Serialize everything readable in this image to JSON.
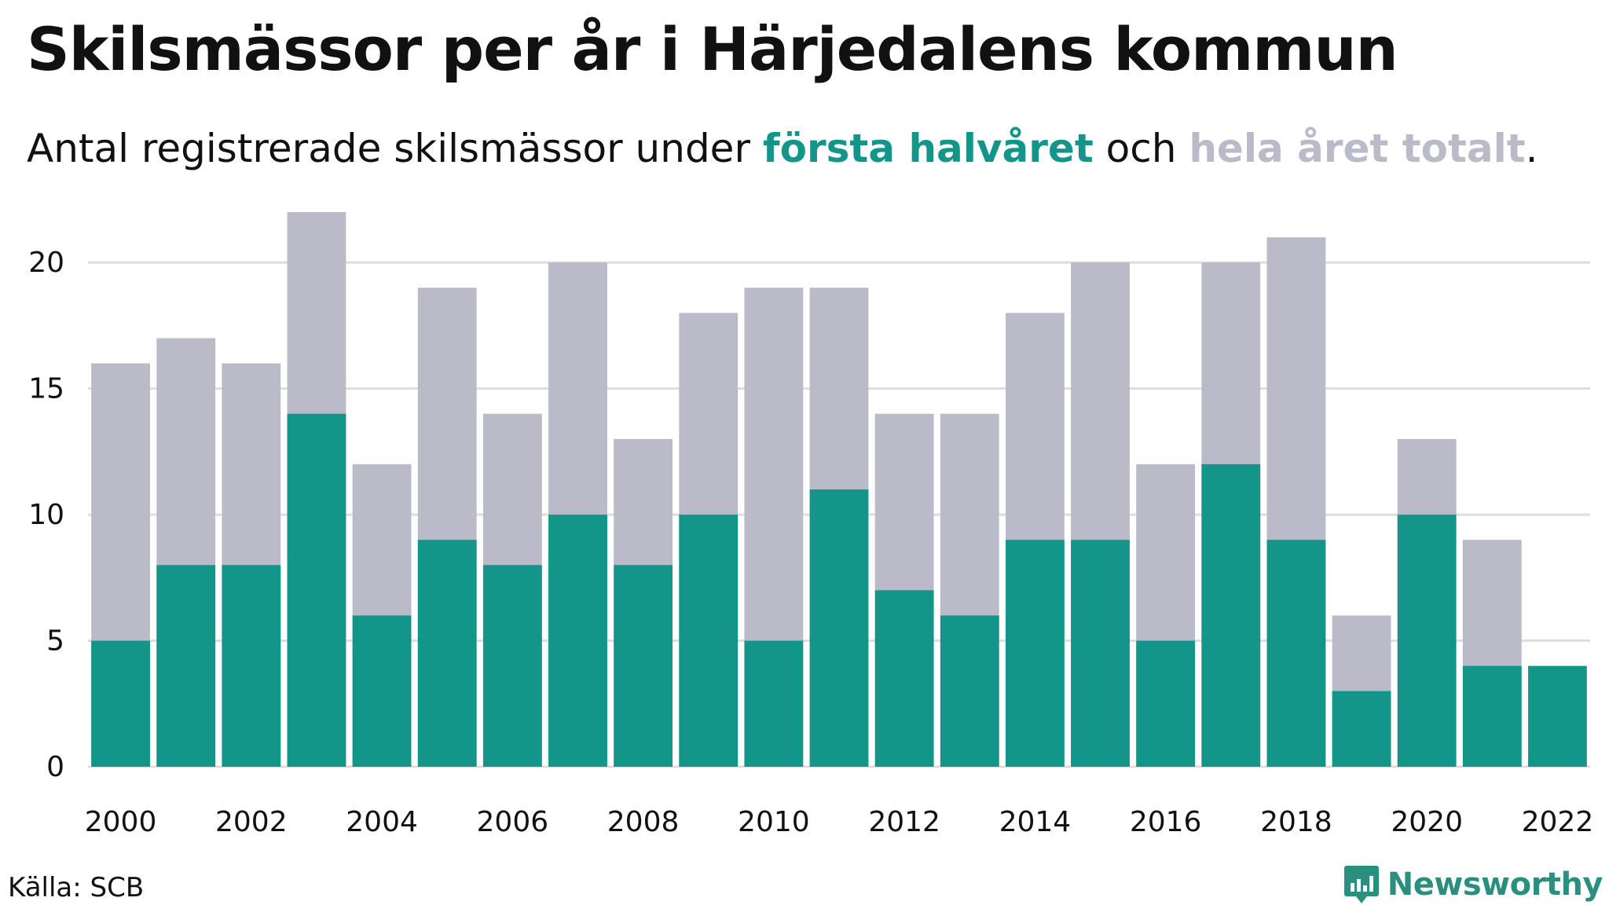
{
  "title": "Skilsmässor per år i Härjedalens kommun",
  "subtitle": {
    "before": "Antal registrerade skilsmässor under ",
    "first_half": "första halvåret",
    "middle": " och ",
    "total": "hela året totalt",
    "after": "."
  },
  "colors": {
    "first_half": "#14958a",
    "total": "#bbbac8",
    "grid": "#dddddd"
  },
  "chart_data": {
    "type": "bar",
    "stacking": "overlay",
    "categories": [
      "2000",
      "2001",
      "2002",
      "2003",
      "2004",
      "2005",
      "2006",
      "2007",
      "2008",
      "2009",
      "2010",
      "2011",
      "2012",
      "2013",
      "2014",
      "2015",
      "2016",
      "2017",
      "2018",
      "2019",
      "2020",
      "2021",
      "2022"
    ],
    "series": [
      {
        "name": "hela året totalt",
        "values": [
          16,
          17,
          16,
          22,
          12,
          19,
          14,
          20,
          13,
          18,
          19,
          19,
          14,
          14,
          18,
          20,
          12,
          20,
          21,
          6,
          13,
          9,
          null
        ]
      },
      {
        "name": "första halvåret",
        "values": [
          5,
          8,
          8,
          14,
          6,
          9,
          8,
          10,
          8,
          10,
          5,
          11,
          7,
          6,
          9,
          9,
          5,
          12,
          9,
          3,
          10,
          4,
          4
        ]
      }
    ],
    "y_ticks": [
      0,
      5,
      10,
      15,
      20
    ],
    "x_tick_labels": [
      "2000",
      "2002",
      "2004",
      "2006",
      "2008",
      "2010",
      "2012",
      "2014",
      "2016",
      "2018",
      "2020",
      "2022"
    ],
    "ylim": [
      0,
      22
    ],
    "grid": true,
    "xlabel": "",
    "ylabel": ""
  },
  "footer": {
    "source": "Källa: SCB",
    "brand": "Newsworthy",
    "brand_icon": "chart-bubble-icon"
  }
}
